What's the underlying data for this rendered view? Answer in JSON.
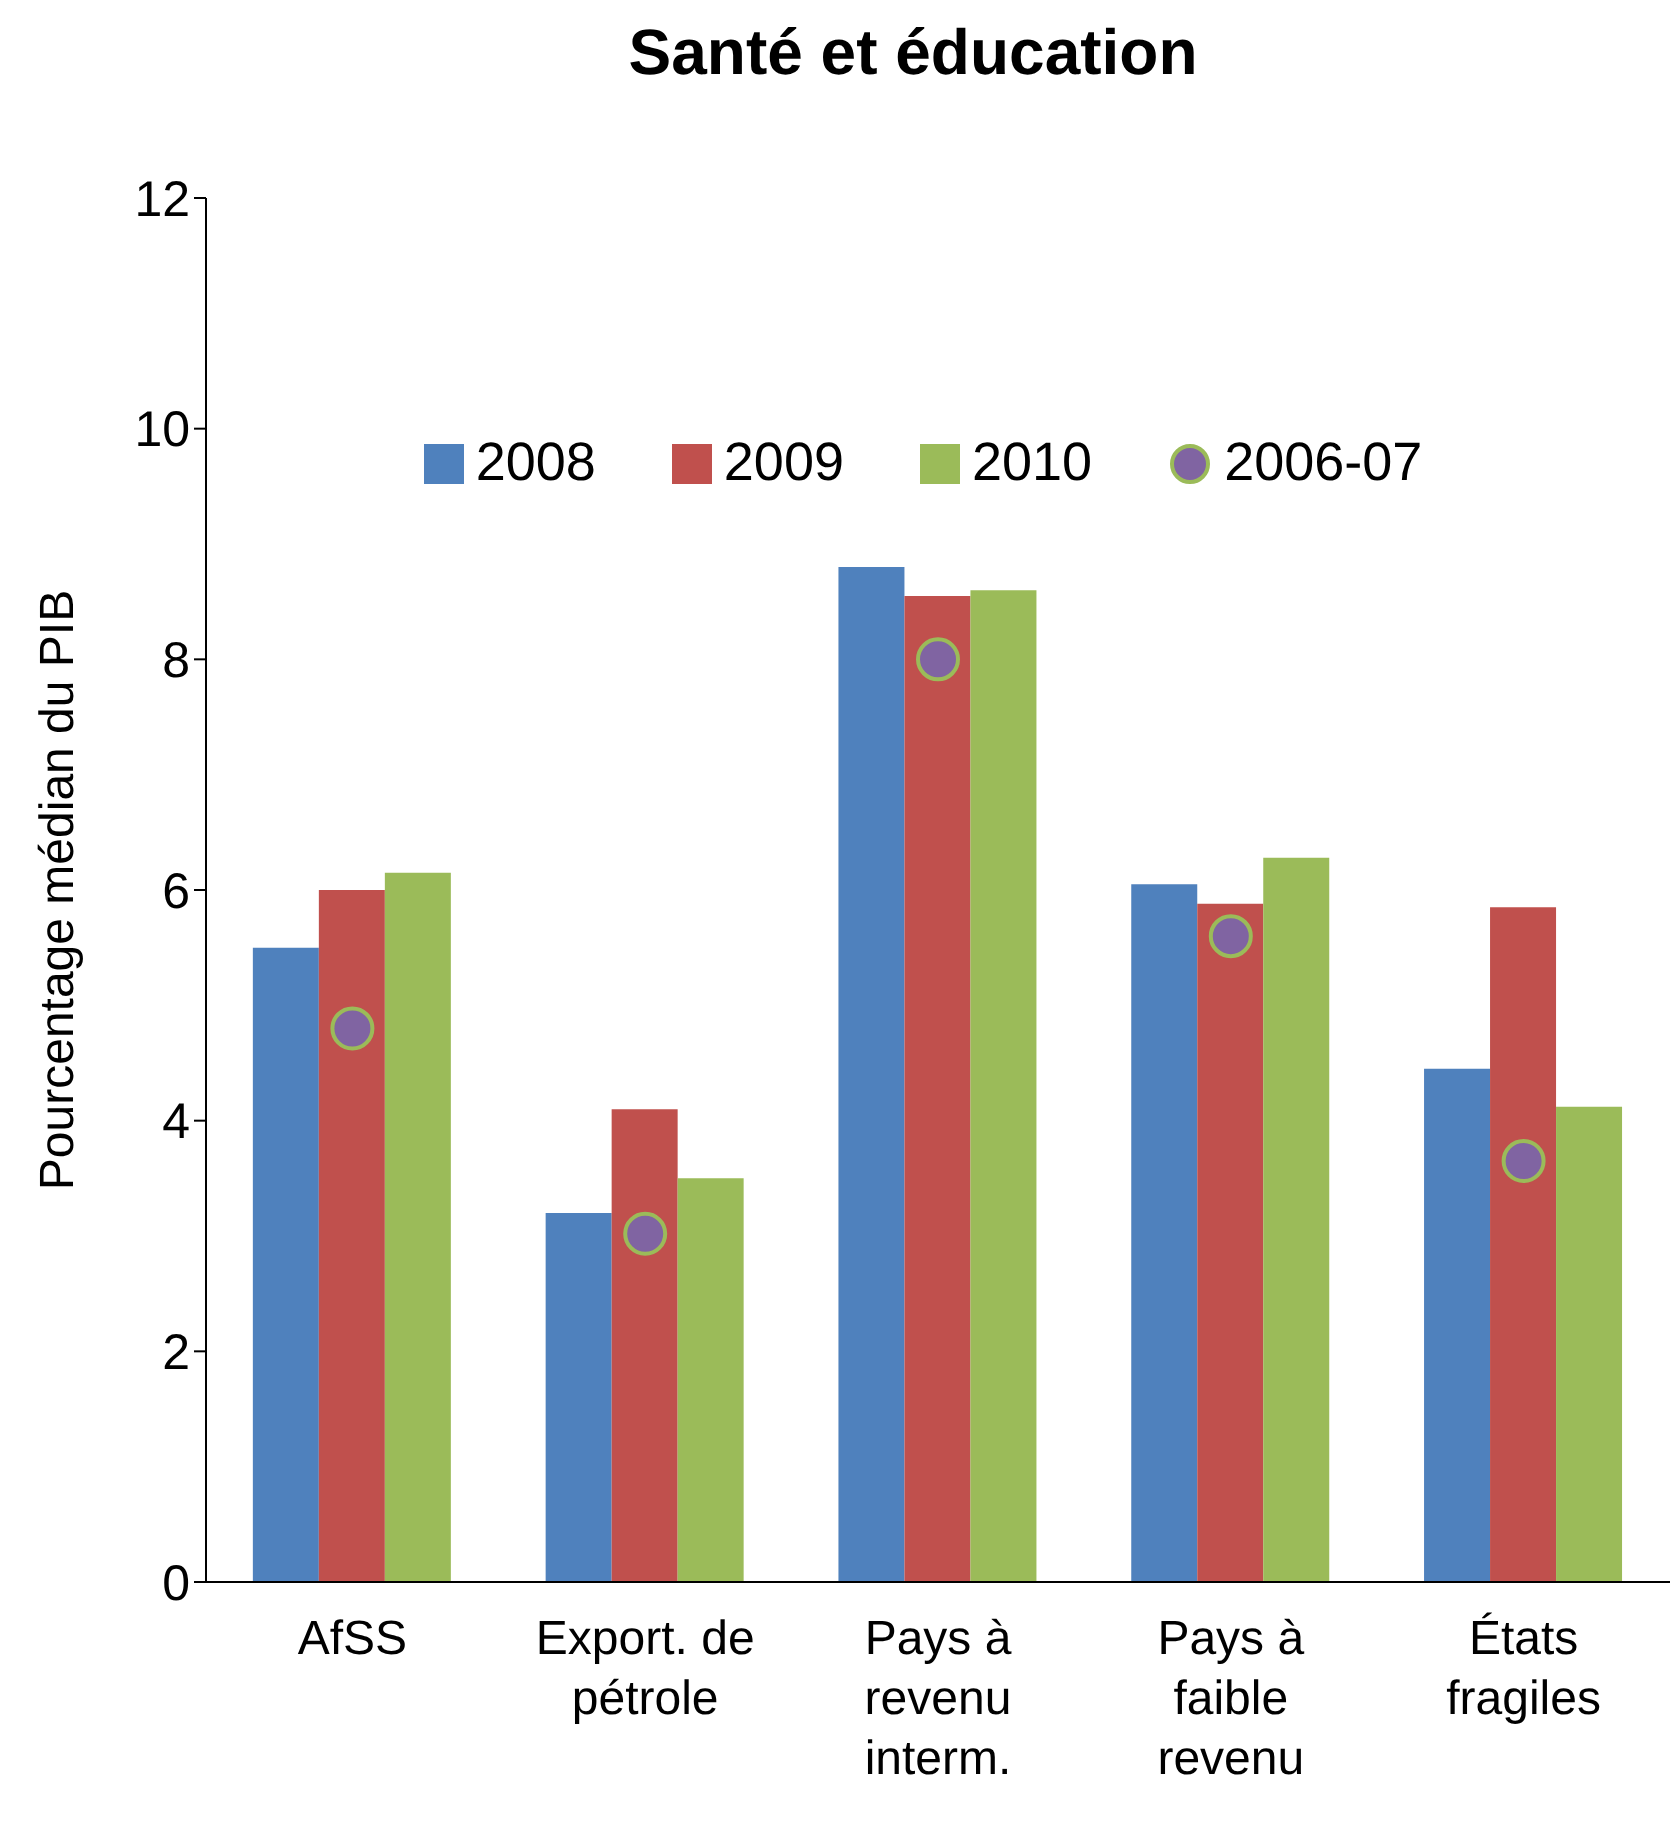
{
  "chart_data": {
    "type": "bar",
    "title": "Santé et éducation",
    "ylabel": "Pourcentage médian du PIB",
    "categories": [
      "AfSS",
      "Export. de pétrole",
      "Pays à revenu interm.",
      "Pays à faible revenu",
      "États fragiles"
    ],
    "series": [
      {
        "name": "2008",
        "color": "#4f81bd",
        "values": [
          5.5,
          3.2,
          8.8,
          6.05,
          4.45
        ]
      },
      {
        "name": "2009",
        "color": "#c0504d",
        "values": [
          6.0,
          4.1,
          8.55,
          5.88,
          5.85
        ]
      },
      {
        "name": "2010",
        "color": "#9bbb59",
        "values": [
          6.15,
          3.5,
          8.6,
          6.28,
          4.12
        ]
      },
      {
        "name": "2006-07",
        "type": "scatter",
        "color": "#8064a2",
        "marker": "circle",
        "values": [
          4.8,
          3.02,
          8.0,
          5.6,
          3.65
        ]
      }
    ],
    "ylim": [
      0,
      12
    ],
    "yticks": [
      0,
      2,
      4,
      6,
      8,
      10,
      12
    ],
    "legend": "top"
  }
}
